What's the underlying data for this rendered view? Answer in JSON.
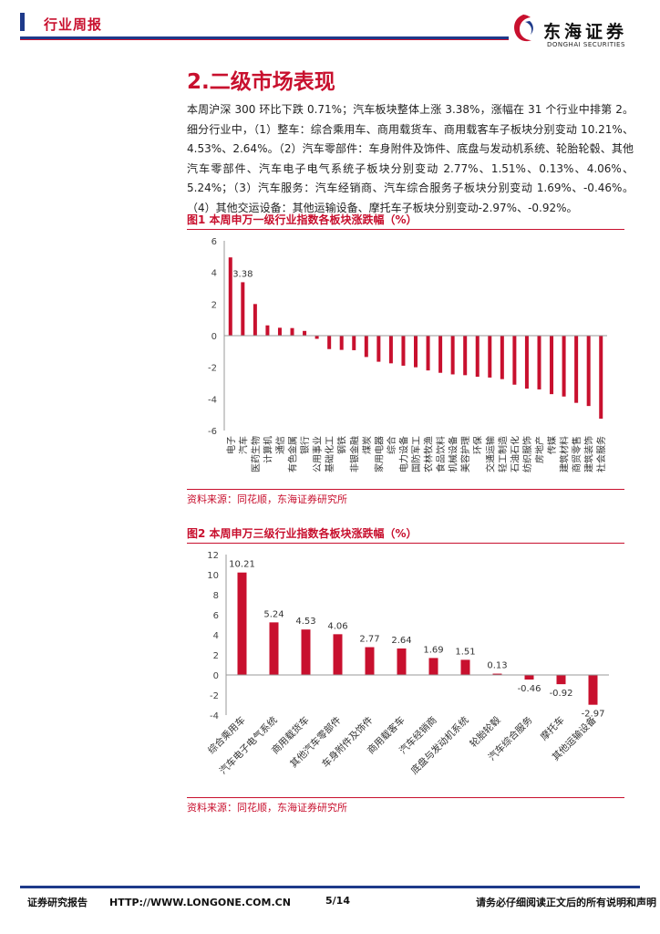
{
  "header": {
    "tag": "行业周报",
    "logo_cn": "东海证券",
    "logo_en": "DONGHAI SECURITIES"
  },
  "section_title": "2.二级市场表现",
  "paragraph": "本周沪深 300 环比下跌 0.71%；汽车板块整体上涨 3.38%，涨幅在 31 个行业中排第 2。细分行业中，（1）整车：综合乘用车、商用载货车、商用载客车子板块分别变动 10.21%、4.53%、2.64%。（2）汽车零部件：车身附件及饰件、底盘与发动机系统、轮胎轮毂、其他汽车零部件、汽车电子电气系统子板块分别变动 2.77%、1.51%、0.13%、4.06%、5.24%；（3）汽车服务：汽车经销商、汽车综合服务子板块分别变动 1.69%、-0.46%。（4）其他交运设备：其他运输设备、摩托车子板块分别变动-2.97%、-0.92%。",
  "figure1": {
    "title": "图1  本周申万一级行业指数各板块涨跌幅（%）",
    "source": "资料来源：同花顺，东海证券研究所"
  },
  "figure2": {
    "title": "图2  本周申万三级行业指数各板块涨跌幅（%）",
    "source": "资料来源：同花顺，东海证券研究所"
  },
  "chart_data": [
    {
      "type": "bar",
      "title": "本周申万一级行业指数各板块涨跌幅（%）",
      "ylim": [
        -6,
        6
      ],
      "yticks": [
        6,
        4,
        2,
        0,
        -2,
        -4,
        -6
      ],
      "categories": [
        "电子",
        "汽车",
        "医药生物",
        "计算机",
        "通信",
        "有色金属",
        "银行",
        "公用事业",
        "基础化工",
        "钢铁",
        "非银金融",
        "煤炭",
        "家用电器",
        "综合",
        "电力设备",
        "国防军工",
        "农林牧渔",
        "食品饮料",
        "机械设备",
        "美容护理",
        "环保",
        "交通运输",
        "轻工制造",
        "石油石化",
        "纺织服饰",
        "房地产",
        "传媒",
        "建筑材料",
        "商贸零售",
        "建筑装饰",
        "社会服务"
      ],
      "values": [
        4.95,
        3.38,
        2.0,
        0.65,
        0.5,
        0.48,
        0.3,
        -0.2,
        -0.85,
        -0.9,
        -0.92,
        -1.35,
        -1.65,
        -1.75,
        -1.9,
        -2.0,
        -2.2,
        -2.35,
        -2.45,
        -2.5,
        -2.6,
        -2.65,
        -2.75,
        -3.1,
        -3.35,
        -3.4,
        -3.7,
        -3.85,
        -4.25,
        -4.45,
        -5.25
      ],
      "data_labels": {
        "1": "3.38"
      },
      "color": "#c8102e"
    },
    {
      "type": "bar",
      "title": "本周申万三级行业指数各板块涨跌幅（%）",
      "ylim": [
        -4,
        12
      ],
      "yticks": [
        12,
        10,
        8,
        6,
        4,
        2,
        0,
        -2,
        -4
      ],
      "categories": [
        "综合乘用车",
        "汽车电子电气系统",
        "商用载货车",
        "其他汽车零部件",
        "车身附件及饰件",
        "商用载客车",
        "汽车经销商",
        "底盘与发动机系统",
        "轮胎轮毂",
        "汽车综合服务",
        "摩托车",
        "其他运输设备"
      ],
      "values": [
        10.21,
        5.24,
        4.53,
        4.06,
        2.77,
        2.64,
        1.69,
        1.51,
        0.13,
        -0.46,
        -0.92,
        -2.97
      ],
      "labels": [
        "10.21",
        "5.24",
        "4.53",
        "4.06",
        "2.77",
        "2.64",
        "1.69",
        "1.51",
        "0.13",
        "-0.46",
        "-0.92",
        "-2.97"
      ],
      "color": "#c8102e"
    }
  ],
  "footer": {
    "left": "证券研究报告",
    "url": "HTTP://WWW.LONGONE.COM.CN",
    "page": "5/14",
    "right": "请务必仔细阅读正文后的所有说明和声明"
  }
}
